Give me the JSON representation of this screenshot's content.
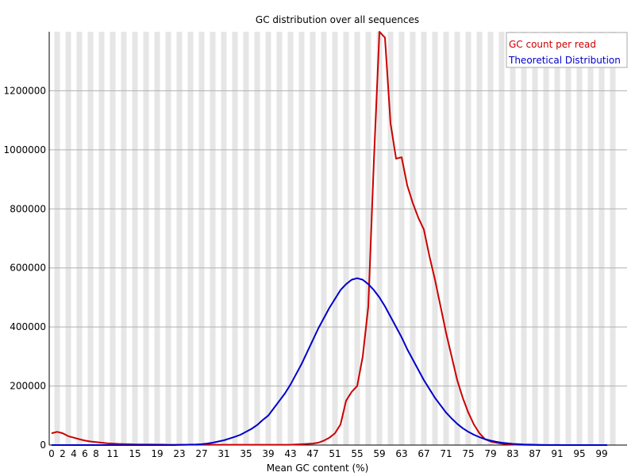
{
  "chart_data": {
    "type": "line",
    "title": "GC distribution over all sequences",
    "xlabel": "Mean GC content (%)",
    "ylabel": "",
    "xlim": [
      0,
      100
    ],
    "ylim": [
      0,
      1400000
    ],
    "x_ticks": [
      0,
      2,
      4,
      6,
      8,
      11,
      15,
      19,
      23,
      27,
      31,
      35,
      39,
      43,
      47,
      51,
      55,
      59,
      63,
      67,
      71,
      75,
      79,
      83,
      87,
      91,
      95,
      99
    ],
    "y_ticks": [
      0,
      200000,
      400000,
      600000,
      800000,
      1000000,
      1200000
    ],
    "grid": "horizontal gridlines with alternating vertical bands",
    "legend_position": "top-right",
    "series": [
      {
        "name": "GC count per read",
        "color": "#cc0000",
        "x": [
          0,
          1,
          2,
          3,
          4,
          5,
          6,
          7,
          8,
          9,
          10,
          11,
          12,
          13,
          14,
          15,
          16,
          17,
          18,
          19,
          20,
          21,
          22,
          23,
          24,
          25,
          26,
          27,
          28,
          29,
          30,
          31,
          32,
          33,
          34,
          35,
          36,
          37,
          38,
          39,
          40,
          41,
          42,
          43,
          44,
          45,
          46,
          47,
          48,
          49,
          50,
          51,
          52,
          53,
          54,
          55,
          56,
          57,
          58,
          59,
          60,
          61,
          62,
          63,
          64,
          65,
          66,
          67,
          68,
          69,
          70,
          71,
          72,
          73,
          74,
          75,
          76,
          77,
          78,
          79,
          80,
          81,
          82,
          83,
          84,
          85,
          86,
          87,
          88,
          89,
          90,
          91,
          92,
          93,
          94,
          95,
          96,
          97,
          98,
          99,
          100
        ],
        "values": [
          40000,
          45000,
          40000,
          30000,
          25000,
          20000,
          15000,
          12000,
          10000,
          8000,
          6000,
          5000,
          4000,
          3500,
          3000,
          2500,
          2000,
          2000,
          2000,
          1500,
          1500,
          1000,
          1000,
          1000,
          1000,
          1000,
          1000,
          1000,
          1000,
          1000,
          1000,
          1000,
          1000,
          1000,
          1000,
          1000,
          1000,
          1000,
          1000,
          1000,
          1000,
          1000,
          1000,
          1000,
          2000,
          3000,
          4000,
          5000,
          8000,
          15000,
          25000,
          40000,
          70000,
          150000,
          180000,
          200000,
          300000,
          470000,
          960000,
          1400000,
          1380000,
          1090000,
          970000,
          975000,
          880000,
          820000,
          770000,
          730000,
          640000,
          560000,
          470000,
          380000,
          300000,
          220000,
          160000,
          110000,
          70000,
          40000,
          20000,
          12000,
          8000,
          5000,
          3000,
          2000,
          1000,
          500,
          300,
          200,
          100,
          50,
          30,
          20,
          10,
          5,
          5,
          5,
          5,
          5,
          5,
          5,
          5
        ]
      },
      {
        "name": "Theoretical Distribution",
        "color": "#0000cc",
        "x": [
          0,
          1,
          2,
          3,
          4,
          5,
          6,
          7,
          8,
          9,
          10,
          11,
          12,
          13,
          14,
          15,
          16,
          17,
          18,
          19,
          20,
          21,
          22,
          23,
          24,
          25,
          26,
          27,
          28,
          29,
          30,
          31,
          32,
          33,
          34,
          35,
          36,
          37,
          38,
          39,
          40,
          41,
          42,
          43,
          44,
          45,
          46,
          47,
          48,
          49,
          50,
          51,
          52,
          53,
          54,
          55,
          56,
          57,
          58,
          59,
          60,
          61,
          62,
          63,
          64,
          65,
          66,
          67,
          68,
          69,
          70,
          71,
          72,
          73,
          74,
          75,
          76,
          77,
          78,
          79,
          80,
          81,
          82,
          83,
          84,
          85,
          86,
          87,
          88,
          89,
          90,
          91,
          92,
          93,
          94,
          95,
          96,
          97,
          98,
          99,
          100
        ],
        "values": [
          0,
          0,
          0,
          0,
          0,
          0,
          0,
          0,
          0,
          0,
          0,
          0,
          0,
          0,
          0,
          0,
          0,
          0,
          0,
          0,
          0,
          0,
          0,
          500,
          1000,
          1500,
          2000,
          3000,
          5000,
          8000,
          12000,
          16000,
          22000,
          28000,
          35000,
          45000,
          55000,
          68000,
          85000,
          100000,
          125000,
          150000,
          175000,
          205000,
          240000,
          275000,
          315000,
          355000,
          395000,
          430000,
          465000,
          495000,
          525000,
          545000,
          560000,
          565000,
          560000,
          545000,
          525000,
          500000,
          470000,
          435000,
          400000,
          365000,
          325000,
          290000,
          255000,
          220000,
          190000,
          160000,
          135000,
          110000,
          90000,
          72000,
          57000,
          45000,
          35000,
          27000,
          20000,
          15000,
          11000,
          8000,
          6000,
          4000,
          3000,
          2000,
          1500,
          1000,
          700,
          400,
          300,
          200,
          100,
          100,
          50,
          0,
          0,
          0,
          0,
          0,
          0
        ]
      }
    ]
  }
}
